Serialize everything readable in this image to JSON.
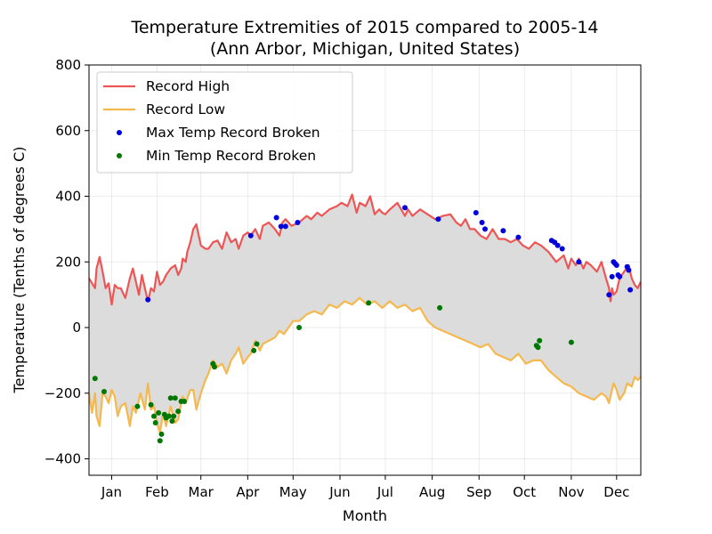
{
  "chart_data": {
    "type": "line",
    "title": "Temperature Extremities of 2015 compared to 2005-14",
    "subtitle": "(Ann Arbor, Michigan, United States)",
    "xlabel": "Month",
    "ylabel": "Temperature (Tenths of degrees C)",
    "xlim": [
      1,
      366
    ],
    "ylim": [
      -450,
      800
    ],
    "yticks": [
      -400,
      -200,
      0,
      200,
      400,
      600,
      800
    ],
    "month_labels": [
      "Jan",
      "Feb",
      "Mar",
      "Apr",
      "May",
      "Jun",
      "Jul",
      "Aug",
      "Sep",
      "Oct",
      "Nov",
      "Dec"
    ],
    "month_label_days": [
      16,
      46,
      75,
      106,
      136,
      167,
      197,
      228,
      259,
      289,
      320,
      350
    ],
    "grid": true,
    "fill_between_series": true,
    "legend_position": "upper left",
    "series": [
      {
        "name": "Record High",
        "kind": "line",
        "color": "#ee5555",
        "x": [
          1,
          5,
          6,
          8,
          10,
          12,
          14,
          16,
          18,
          20,
          22,
          25,
          28,
          30,
          32,
          34,
          36,
          38,
          40,
          42,
          44,
          46,
          48,
          50,
          52,
          55,
          58,
          60,
          62,
          63,
          65,
          66,
          68,
          70,
          72,
          75,
          78,
          80,
          83,
          86,
          89,
          92,
          95,
          98,
          100,
          103,
          106,
          108,
          111,
          114,
          116,
          120,
          124,
          127,
          129,
          131,
          135,
          140,
          145,
          148,
          152,
          155,
          160,
          165,
          168,
          172,
          175,
          178,
          180,
          184,
          187,
          190,
          193,
          195,
          197,
          200,
          205,
          210,
          212,
          215,
          220,
          225,
          230,
          235,
          240,
          244,
          247,
          250,
          253,
          256,
          260,
          264,
          268,
          272,
          276,
          280,
          284,
          288,
          292,
          296,
          300,
          305,
          310,
          315,
          318,
          320,
          323,
          325,
          328,
          330,
          333,
          337,
          340,
          343,
          345,
          346,
          347,
          348,
          350,
          352,
          355,
          358,
          360,
          362,
          364,
          366
        ],
        "y": [
          150,
          120,
          180,
          215,
          170,
          120,
          135,
          70,
          130,
          120,
          120,
          90,
          150,
          180,
          140,
          100,
          160,
          120,
          80,
          120,
          110,
          170,
          130,
          140,
          160,
          180,
          190,
          160,
          180,
          210,
          200,
          230,
          260,
          300,
          315,
          250,
          240,
          240,
          260,
          265,
          240,
          290,
          260,
          270,
          240,
          280,
          290,
          280,
          300,
          270,
          310,
          320,
          300,
          280,
          320,
          330,
          310,
          320,
          340,
          330,
          350,
          340,
          360,
          370,
          380,
          370,
          405,
          350,
          380,
          370,
          400,
          345,
          360,
          350,
          345,
          360,
          380,
          340,
          360,
          340,
          360,
          345,
          330,
          340,
          345,
          320,
          310,
          330,
          300,
          300,
          280,
          270,
          300,
          270,
          270,
          260,
          270,
          250,
          240,
          260,
          250,
          230,
          200,
          220,
          180,
          210,
          190,
          210,
          180,
          200,
          190,
          170,
          200,
          150,
          120,
          80,
          120,
          100,
          110,
          150,
          170,
          190,
          150,
          130,
          120,
          140
        ]
      },
      {
        "name": "Record Low",
        "kind": "line",
        "color": "#f5b84d",
        "x": [
          1,
          3,
          5,
          6,
          8,
          10,
          12,
          14,
          16,
          18,
          20,
          22,
          25,
          28,
          30,
          32,
          35,
          38,
          40,
          42,
          44,
          46,
          48,
          50,
          52,
          55,
          58,
          60,
          62,
          63,
          65,
          68,
          70,
          72,
          75,
          78,
          80,
          83,
          86,
          89,
          92,
          95,
          98,
          100,
          103,
          106,
          108,
          111,
          114,
          116,
          120,
          124,
          127,
          130,
          133,
          136,
          140,
          145,
          150,
          155,
          160,
          165,
          170,
          175,
          180,
          185,
          190,
          195,
          200,
          205,
          210,
          215,
          220,
          225,
          230,
          235,
          240,
          245,
          250,
          255,
          260,
          265,
          270,
          275,
          280,
          285,
          290,
          295,
          300,
          305,
          310,
          315,
          320,
          325,
          330,
          335,
          340,
          343,
          345,
          348,
          350,
          352,
          355,
          357,
          360,
          362,
          364,
          366
        ],
        "y": [
          -200,
          -260,
          -200,
          -270,
          -300,
          -200,
          -210,
          -230,
          -190,
          -210,
          -270,
          -240,
          -230,
          -300,
          -240,
          -260,
          -200,
          -250,
          -170,
          -250,
          -240,
          -290,
          -320,
          -260,
          -300,
          -240,
          -290,
          -280,
          -230,
          -210,
          -230,
          -190,
          -190,
          -250,
          -200,
          -160,
          -140,
          -100,
          -120,
          -110,
          -140,
          -100,
          -80,
          -60,
          -110,
          -90,
          -80,
          -40,
          -70,
          -50,
          -40,
          -30,
          -10,
          -20,
          0,
          20,
          20,
          40,
          50,
          40,
          70,
          60,
          80,
          70,
          90,
          70,
          80,
          60,
          80,
          60,
          70,
          50,
          60,
          20,
          0,
          -10,
          -20,
          -30,
          -40,
          -50,
          -60,
          -50,
          -80,
          -90,
          -100,
          -80,
          -110,
          -100,
          -100,
          -130,
          -150,
          -170,
          -180,
          -200,
          -210,
          -220,
          -200,
          -210,
          -230,
          -170,
          -190,
          -220,
          -200,
          -170,
          -180,
          -150,
          -160,
          -150
        ]
      },
      {
        "name": "Max Temp Record Broken",
        "kind": "scatter",
        "color": "#0000dd",
        "x": [
          40,
          108,
          125,
          128,
          131,
          139,
          210,
          232,
          257,
          261,
          263,
          275,
          285,
          307,
          309,
          311,
          314,
          325,
          345,
          347,
          348,
          349,
          350,
          351,
          352,
          357,
          358,
          359
        ],
        "y": [
          85,
          280,
          335,
          308,
          308,
          320,
          365,
          330,
          350,
          320,
          300,
          295,
          275,
          265,
          260,
          250,
          240,
          200,
          100,
          155,
          200,
          195,
          190,
          160,
          155,
          185,
          175,
          115
        ]
      },
      {
        "name": "Min Temp Record Broken",
        "kind": "scatter",
        "color": "#007700",
        "x": [
          5,
          11,
          33,
          42,
          44,
          45,
          47,
          48,
          49,
          51,
          52,
          54,
          55,
          56,
          57,
          58,
          60,
          62,
          64,
          83,
          84,
          110,
          112,
          140,
          186,
          233,
          297,
          298,
          299,
          320
        ],
        "y": [
          -155,
          -195,
          -240,
          -235,
          -270,
          -290,
          -260,
          -345,
          -325,
          -265,
          -275,
          -270,
          -215,
          -285,
          -270,
          -215,
          -255,
          -225,
          -225,
          -110,
          -120,
          -70,
          -50,
          0,
          75,
          60,
          -55,
          -60,
          -40,
          -45
        ]
      }
    ]
  }
}
